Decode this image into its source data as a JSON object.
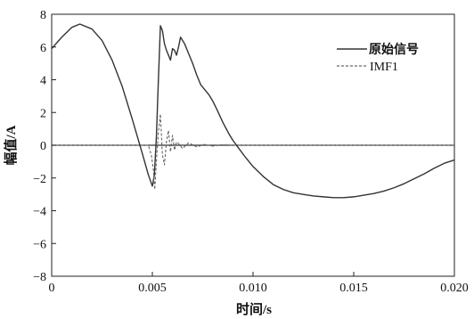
{
  "chart_data": {
    "type": "line",
    "xlabel": "时间/s",
    "ylabel": "幅值/A",
    "xlim": [
      0,
      0.02
    ],
    "ylim": [
      -8,
      8
    ],
    "xticks": [
      0,
      0.005,
      0.01,
      0.015,
      0.02
    ],
    "xtick_labels": [
      "0",
      "0.005",
      "0.010",
      "0.015",
      "0.020"
    ],
    "yticks": [
      -8,
      -6,
      -4,
      -2,
      0,
      2,
      4,
      6,
      8
    ],
    "ytick_labels": [
      "−8",
      "−6",
      "−4",
      "−2",
      "0",
      "2",
      "4",
      "6",
      "8"
    ],
    "legend_position": "top-right",
    "series": [
      {
        "name": "原始信号",
        "color": "#333333",
        "style": "solid",
        "x": [
          0,
          0.0005,
          0.001,
          0.0014,
          0.002,
          0.0025,
          0.003,
          0.0035,
          0.004,
          0.0045,
          0.0048,
          0.005,
          0.0051,
          0.0052,
          0.0053,
          0.0054,
          0.0055,
          0.0056,
          0.0057,
          0.0058,
          0.0059,
          0.006,
          0.0061,
          0.0062,
          0.0063,
          0.0064,
          0.0065,
          0.0066,
          0.0068,
          0.007,
          0.0072,
          0.0074,
          0.0076,
          0.0078,
          0.008,
          0.0082,
          0.0085,
          0.0088,
          0.009,
          0.0093,
          0.0096,
          0.01,
          0.0105,
          0.011,
          0.0115,
          0.012,
          0.0125,
          0.013,
          0.0135,
          0.014,
          0.0145,
          0.015,
          0.0155,
          0.016,
          0.0165,
          0.017,
          0.0175,
          0.018,
          0.0185,
          0.019,
          0.0195,
          0.02
        ],
        "y": [
          5.9,
          6.6,
          7.2,
          7.4,
          7.1,
          6.4,
          5.2,
          3.6,
          1.6,
          -0.5,
          -1.8,
          -2.5,
          -1.8,
          0.5,
          4.0,
          7.3,
          7.0,
          6.2,
          5.8,
          5.5,
          5.2,
          5.9,
          5.8,
          5.5,
          6.0,
          6.6,
          6.4,
          6.2,
          5.6,
          5.0,
          4.3,
          3.7,
          3.4,
          3.1,
          2.7,
          2.2,
          1.4,
          0.7,
          0.3,
          -0.2,
          -0.7,
          -1.3,
          -1.9,
          -2.4,
          -2.7,
          -2.9,
          -3.0,
          -3.1,
          -3.15,
          -3.2,
          -3.2,
          -3.15,
          -3.05,
          -2.95,
          -2.8,
          -2.6,
          -2.35,
          -2.05,
          -1.75,
          -1.4,
          -1.1,
          -0.9
        ]
      },
      {
        "name": "IMF1",
        "color": "#666666",
        "style": "dashed",
        "x": [
          0,
          0.0048,
          0.00495,
          0.00505,
          0.00512,
          0.0052,
          0.0053,
          0.0054,
          0.0055,
          0.0056,
          0.0057,
          0.0058,
          0.0059,
          0.006,
          0.0061,
          0.0062,
          0.0063,
          0.0065,
          0.0068,
          0.0072,
          0.0076,
          0.008,
          0.0085,
          0.009,
          0.01,
          0.015,
          0.02
        ],
        "y": [
          0,
          0,
          -0.6,
          -1.5,
          -2.7,
          -1.0,
          0.8,
          1.9,
          -0.6,
          -1.2,
          0.2,
          0.9,
          -0.4,
          0.6,
          -0.3,
          0.2,
          0.1,
          -0.2,
          0.15,
          -0.1,
          0.05,
          -0.05,
          0.03,
          0,
          0,
          0,
          0
        ]
      }
    ]
  }
}
